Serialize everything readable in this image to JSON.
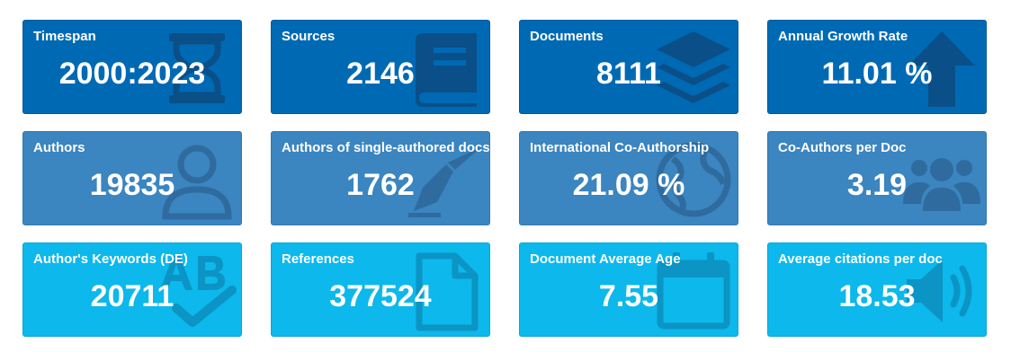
{
  "cards": [
    {
      "label": "Timespan",
      "value": "2000:2023",
      "icon": "hourglass-icon"
    },
    {
      "label": "Sources",
      "value": "2146",
      "icon": "book-icon"
    },
    {
      "label": "Documents",
      "value": "8111",
      "icon": "layers-icon"
    },
    {
      "label": "Annual Growth Rate",
      "value": "11.01 %",
      "icon": "arrow-up-icon"
    },
    {
      "label": "Authors",
      "value": "19835",
      "icon": "user-icon"
    },
    {
      "label": "Authors of single-authored docs",
      "value": "1762",
      "icon": "pen-icon"
    },
    {
      "label": "International Co-Authorship",
      "value": "21.09 %",
      "icon": "globe-icon"
    },
    {
      "label": "Co-Authors per Doc",
      "value": "3.19",
      "icon": "users-icon"
    },
    {
      "label": "Author's Keywords (DE)",
      "value": "20711",
      "icon": "spellcheck-icon"
    },
    {
      "label": "References",
      "value": "377524",
      "icon": "file-icon"
    },
    {
      "label": "Document Average Age",
      "value": "7.55",
      "icon": "calendar-icon"
    },
    {
      "label": "Average citations per doc",
      "value": "18.53",
      "icon": "volume-icon"
    }
  ],
  "colors": {
    "row1_bg": "#0069b4",
    "row2_bg": "#3b85c0",
    "row3_bg": "#0cb8ec",
    "text": "#ffffff"
  }
}
